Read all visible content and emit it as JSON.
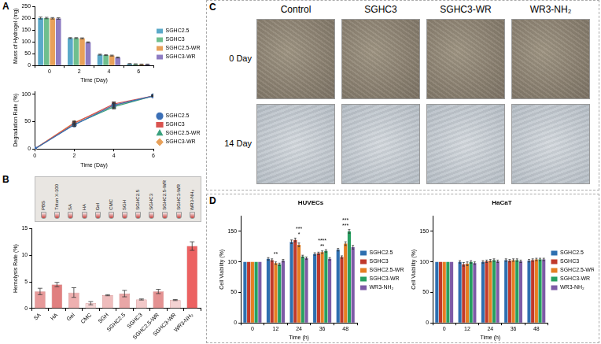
{
  "panel_letters": [
    "A",
    "B",
    "C",
    "D"
  ],
  "chart_data": [
    {
      "type": "bar",
      "x_label": "Time (Day)",
      "y_label": "Mass of Hydrogel (mg)",
      "categories": [
        "0",
        "2",
        "4",
        "6"
      ],
      "series": [
        {
          "name": "SGHC2.5",
          "color": "#5aa9c9",
          "values": [
            201,
            116,
            46,
            7
          ],
          "errors": [
            4,
            2,
            2,
            1
          ]
        },
        {
          "name": "SGHC3",
          "color": "#6fbf8e",
          "values": [
            201,
            116,
            44,
            6
          ],
          "errors": [
            3,
            2,
            2,
            1
          ]
        },
        {
          "name": "SGHC2.5-WR",
          "color": "#e8a15a",
          "values": [
            200,
            115,
            42,
            5
          ],
          "errors": [
            3,
            2,
            2,
            1
          ]
        },
        {
          "name": "SGHC3-WR",
          "color": "#8e7cc3",
          "values": [
            199,
            98,
            34,
            5
          ],
          "errors": [
            3,
            2,
            2,
            1
          ]
        }
      ],
      "ylim": [
        0,
        250
      ],
      "yticks": [
        0,
        50,
        100,
        150,
        200,
        250
      ],
      "grid": false,
      "legend": "right"
    },
    {
      "type": "line",
      "x_label": "Time (Day)",
      "y_label": "Degradation Rate (%)",
      "x": [
        0,
        2,
        4,
        6
      ],
      "xlim": [
        0,
        6
      ],
      "xticks": [
        0,
        2,
        4,
        6
      ],
      "series": [
        {
          "name": "SGHC2.5",
          "color": "#3b6fb6",
          "marker": "circle",
          "values": [
            0,
            44,
            80,
            97
          ],
          "errors": [
            0,
            3,
            5,
            1
          ]
        },
        {
          "name": "SGHC3",
          "color": "#d9534f",
          "marker": "square",
          "values": [
            0,
            47,
            82,
            97
          ],
          "errors": [
            0,
            3,
            4,
            1
          ]
        },
        {
          "name": "SGHC2.5-WR",
          "color": "#3aa17e",
          "marker": "triangle",
          "values": [
            0,
            45,
            77,
            97
          ],
          "errors": [
            0,
            3,
            4,
            1
          ]
        },
        {
          "name": "SGHC3-WR",
          "color": "#e8a15a",
          "marker": "diamond",
          "values": [
            0,
            48,
            79,
            97
          ],
          "errors": [
            0,
            3,
            4,
            1
          ]
        }
      ],
      "ylim": [
        0,
        105
      ],
      "yticks": [
        0,
        50,
        100
      ],
      "grid": false,
      "legend": "right"
    },
    {
      "type": "bar",
      "y_label": "Hemolysis Rate (%)",
      "categories": [
        "SA",
        "HA",
        "Gel",
        "CMC",
        "SGH",
        "SGHC2.5",
        "SGHC3",
        "SGHC2.5-WR",
        "SGHC3-WR",
        "WR3-NH₂"
      ],
      "values": [
        3.2,
        4.5,
        3.0,
        1.0,
        2.5,
        2.8,
        1.7,
        3.2,
        1.6,
        11.7
      ],
      "errors": [
        0.6,
        0.4,
        0.9,
        0.3,
        0.1,
        0.6,
        0.1,
        0.4,
        0.1,
        0.8
      ],
      "colors": [
        "#e79a9a",
        "#e07f7f",
        "#eeb0b0",
        "#f6d4d4",
        "#eebcbc",
        "#e9a6a6",
        "#f2c8c8",
        "#e49292",
        "#f4d2d2",
        "#ec6262"
      ],
      "inset_labels": [
        "PBS",
        "Triton X-100",
        "SA",
        "HA",
        "Gel",
        "CMC",
        "SGH",
        "SGHC2.5",
        "SGHC3",
        "SGHC2.5-WR",
        "SGHC3-WR",
        "WR3-NH₂"
      ],
      "ylim": [
        0,
        15
      ],
      "yticks": [
        0,
        5,
        10,
        15
      ],
      "grid": false
    },
    {
      "type": "bar",
      "title": "HUVECs",
      "x_label": "Time (h)",
      "y_label": "Cell Viability (%)",
      "categories": [
        "0",
        "12",
        "24",
        "36",
        "48"
      ],
      "series": [
        {
          "name": "SGHC2.5",
          "color": "#2e6fb0",
          "values": [
            100,
            105,
            133,
            113,
            120
          ],
          "errors": [
            0,
            2,
            3,
            2,
            2
          ]
        },
        {
          "name": "SGHC3",
          "color": "#c0392b",
          "values": [
            100,
            103,
            136,
            114,
            108
          ],
          "errors": [
            0,
            2,
            3,
            2,
            2
          ]
        },
        {
          "name": "SGHC2.5-WR",
          "color": "#e67e22",
          "values": [
            100,
            98,
            128,
            116,
            130
          ],
          "errors": [
            0,
            2,
            3,
            2,
            3
          ]
        },
        {
          "name": "SGHC3-WR",
          "color": "#27a060",
          "values": [
            100,
            96,
            109,
            118,
            150
          ],
          "errors": [
            0,
            2,
            2,
            2,
            3
          ]
        },
        {
          "name": "WR3-NH₂",
          "color": "#7d5ba6",
          "values": [
            100,
            102,
            106,
            105,
            124
          ],
          "errors": [
            0,
            2,
            2,
            2,
            3
          ]
        }
      ],
      "annotations": [
        {
          "category": "12",
          "texts": [
            "**"
          ]
        },
        {
          "category": "24",
          "texts": [
            "*",
            "***"
          ]
        },
        {
          "category": "36",
          "texts": [
            "**",
            "****"
          ]
        },
        {
          "category": "48",
          "texts": [
            "***",
            "***"
          ]
        }
      ],
      "ylim": [
        0,
        175
      ],
      "yticks": [
        0,
        50,
        100,
        150
      ],
      "grid": false,
      "legend": "right"
    },
    {
      "type": "bar",
      "title": "HaCaT",
      "x_label": "Time (h)",
      "y_label": "Cell Viability (%)",
      "categories": [
        "0",
        "12",
        "24",
        "36",
        "48"
      ],
      "series": [
        {
          "name": "SGHC2.5",
          "color": "#2e6fb0",
          "values": [
            100,
            100,
            100,
            103,
            102
          ],
          "errors": [
            0,
            2,
            2,
            2,
            2
          ]
        },
        {
          "name": "SGHC3",
          "color": "#c0392b",
          "values": [
            100,
            96,
            101,
            102,
            103
          ],
          "errors": [
            0,
            3,
            2,
            2,
            2
          ]
        },
        {
          "name": "SGHC2.5-WR",
          "color": "#e67e22",
          "values": [
            100,
            97,
            102,
            103,
            104
          ],
          "errors": [
            0,
            3,
            2,
            2,
            2
          ]
        },
        {
          "name": "SGHC3-WR",
          "color": "#27a060",
          "values": [
            100,
            100,
            103,
            103,
            104
          ],
          "errors": [
            0,
            2,
            2,
            2,
            2
          ]
        },
        {
          "name": "WR3-NH₂",
          "color": "#7d5ba6",
          "values": [
            100,
            98,
            101,
            101,
            104
          ],
          "errors": [
            0,
            2,
            2,
            2,
            2
          ]
        }
      ],
      "ylim": [
        0,
        175
      ],
      "yticks": [
        0,
        50,
        100,
        150
      ],
      "grid": false,
      "legend": "right"
    }
  ],
  "photo_grid": {
    "columns": [
      "Control",
      "SGHC3",
      "SGHC3-WR",
      "WR3-NH₂"
    ],
    "rows": [
      "0 Day",
      "14 Day"
    ]
  }
}
